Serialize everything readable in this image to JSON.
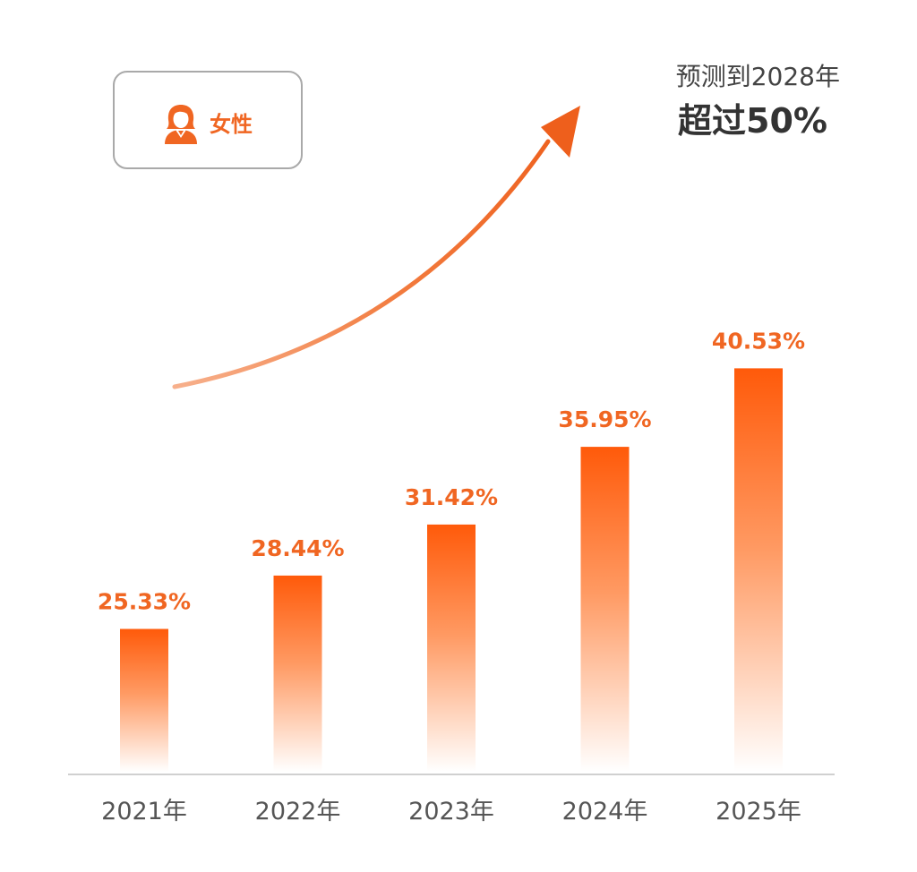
{
  "legend": {
    "label": "女性",
    "icon": "female-person-icon"
  },
  "forecast": {
    "line1": "预测到2028年",
    "line2": "超过50%"
  },
  "colors": {
    "accent": "#f06622",
    "bar_top": "#ff5a0a",
    "bar_bottom": "#ffffff",
    "axis": "#d0d0d0",
    "tick_text": "#555555"
  },
  "chart_data": {
    "type": "bar",
    "categories": [
      "2021年",
      "2022年",
      "2023年",
      "2024年",
      "2025年"
    ],
    "values": [
      25.33,
      28.44,
      31.42,
      35.95,
      40.53
    ],
    "value_labels": [
      "25.33%",
      "28.44%",
      "31.42%",
      "35.95%",
      "40.53%"
    ],
    "title": "",
    "xlabel": "",
    "ylabel": "",
    "ylim": [
      17,
      44
    ],
    "grid": false,
    "annotations": [
      "预测到2028年",
      "超过50%"
    ]
  }
}
